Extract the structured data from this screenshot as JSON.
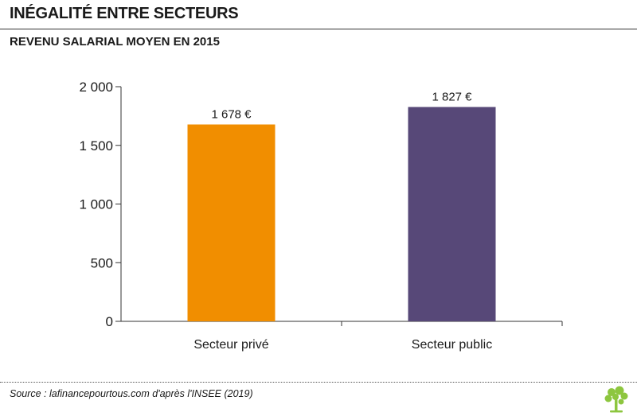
{
  "header": {
    "title": "INÉGALITÉ ENTRE SECTEURS",
    "subtitle": "REVENU SALARIAL MOYEN EN 2015"
  },
  "footer": {
    "source": "Source : lafinancepourtous.com d'après l'INSEE (2019)",
    "logo_icon": "tree-logo-icon",
    "logo_color": "#8dc63f"
  },
  "chart_data": {
    "type": "bar",
    "categories": [
      "Secteur privé",
      "Secteur public"
    ],
    "values": [
      1678,
      1827
    ],
    "data_labels": [
      "1 678 €",
      "1 827 €"
    ],
    "colors": [
      "#f18e00",
      "#574878"
    ],
    "yticks": [
      "0",
      "500",
      "1 000",
      "1 500",
      "2 000"
    ],
    "ytick_values": [
      0,
      500,
      1000,
      1500,
      2000
    ],
    "ylim": [
      0,
      2000
    ],
    "grid": false,
    "legend": "none"
  }
}
